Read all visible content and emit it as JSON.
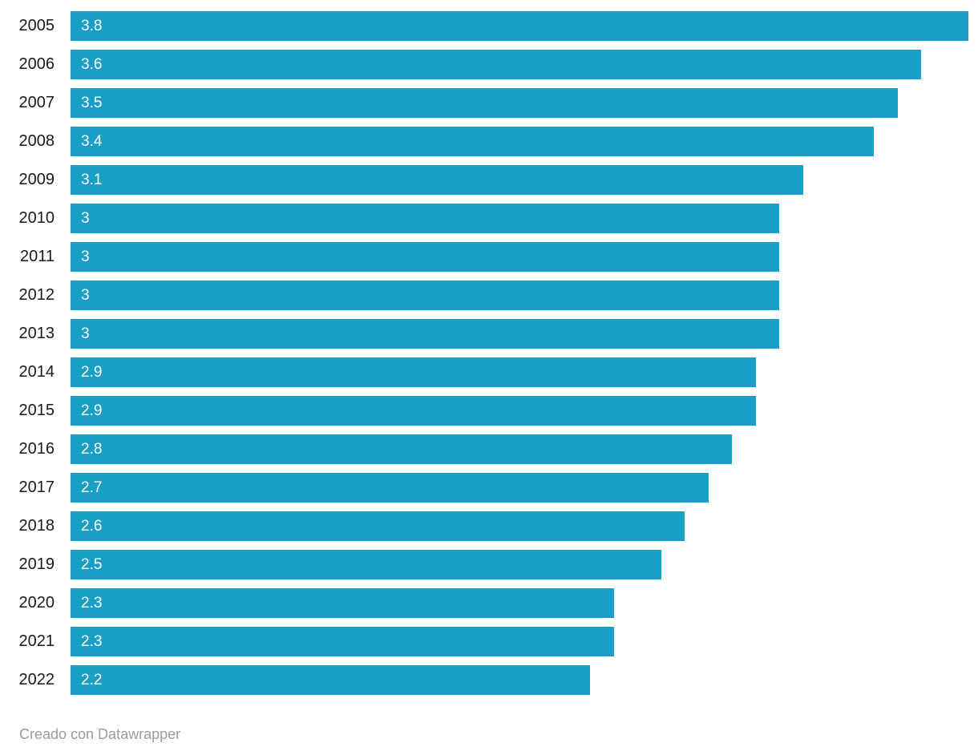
{
  "chart_data": {
    "type": "bar",
    "orientation": "horizontal",
    "title": "",
    "xlabel": "",
    "ylabel": "",
    "xlim": [
      0,
      3.8
    ],
    "grid": false,
    "legend": "none",
    "bar_color": "#189fc7",
    "categories": [
      "2005",
      "2006",
      "2007",
      "2008",
      "2009",
      "2010",
      "2011",
      "2012",
      "2013",
      "2014",
      "2015",
      "2016",
      "2017",
      "2018",
      "2019",
      "2020",
      "2021",
      "2022"
    ],
    "values": [
      3.8,
      3.6,
      3.5,
      3.4,
      3.1,
      3,
      3,
      3,
      3,
      2.9,
      2.9,
      2.8,
      2.7,
      2.6,
      2.5,
      2.3,
      2.3,
      2.2
    ],
    "value_labels": [
      "3.8",
      "3.6",
      "3.5",
      "3.4",
      "3.1",
      "3",
      "3",
      "3",
      "3",
      "2.9",
      "2.9",
      "2.8",
      "2.7",
      "2.6",
      "2.5",
      "2.3",
      "2.3",
      "2.2"
    ]
  },
  "footer": {
    "credit": "Creado con Datawrapper"
  },
  "colors": {
    "bar": "#189fc7",
    "category_label": "#1a1a1a",
    "value_label": "#ffffff",
    "footer_text": "#9b9b9b",
    "background": "#ffffff"
  }
}
